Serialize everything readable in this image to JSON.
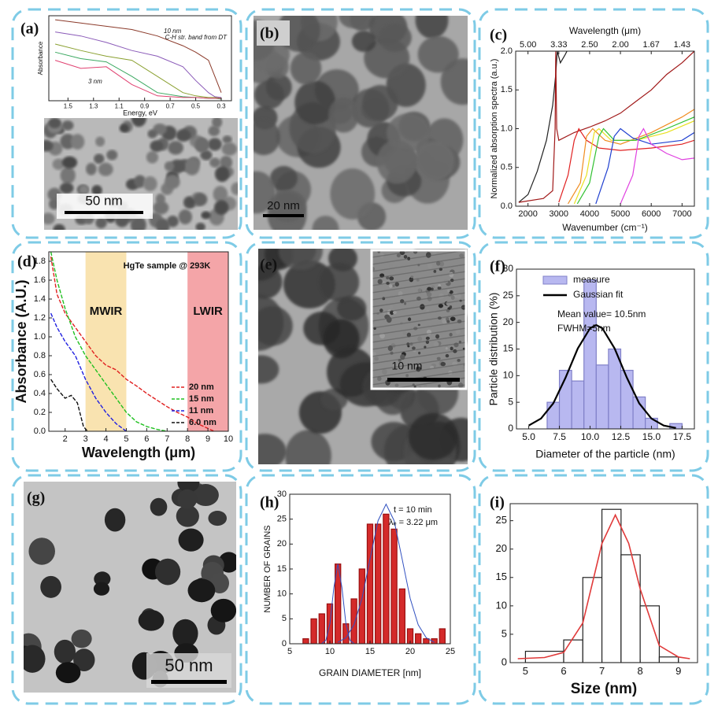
{
  "images": [
    {
      "label": "(a)",
      "scale_bar": "50 nm"
    },
    {
      "label": "(b)",
      "scale_bar": "20 nm"
    },
    {
      "label": "(e)",
      "scale_bar": "10 nm"
    },
    {
      "label": "(g)",
      "scale_bar": "50 nm"
    }
  ],
  "chart_data": [
    {
      "type": "line",
      "xlabel": "Energy, eV",
      "ylabel": "Absorbance",
      "xlim": [
        1.65,
        0.22
      ],
      "ylim": [
        0,
        1.05
      ],
      "xticks": [
        1.5,
        1.3,
        1.1,
        0.9,
        0.7,
        0.5,
        0.3
      ],
      "annotations": [
        "10 nm",
        "3 nm",
        "C-H str. band from DT"
      ],
      "series": [
        {
          "color": "#8b3a2a",
          "x": [
            1.6,
            1.4,
            1.2,
            1.0,
            0.8,
            0.6,
            0.5,
            0.4,
            0.35,
            0.3
          ],
          "values": [
            1.0,
            0.96,
            0.92,
            0.88,
            0.8,
            0.68,
            0.6,
            0.5,
            0.3,
            0.1
          ]
        },
        {
          "color": "#8a5ab8",
          "x": [
            1.6,
            1.4,
            1.2,
            1.0,
            0.8,
            0.6,
            0.5,
            0.4,
            0.35,
            0.3
          ],
          "values": [
            0.85,
            0.8,
            0.72,
            0.62,
            0.55,
            0.42,
            0.25,
            0.1,
            0.05,
            0.04
          ]
        },
        {
          "color": "#8aa030",
          "x": [
            1.6,
            1.4,
            1.2,
            1.0,
            0.8,
            0.6,
            0.5,
            0.4,
            0.35,
            0.3
          ],
          "values": [
            0.7,
            0.62,
            0.55,
            0.5,
            0.3,
            0.1,
            0.06,
            0.04,
            0.04,
            0.03
          ]
        },
        {
          "color": "#3aa860",
          "x": [
            1.6,
            1.4,
            1.2,
            1.0,
            0.8,
            0.6,
            0.5,
            0.4,
            0.35,
            0.3
          ],
          "values": [
            0.6,
            0.52,
            0.48,
            0.3,
            0.1,
            0.05,
            0.04,
            0.03,
            0.03,
            0.02
          ]
        },
        {
          "color": "#e04070",
          "x": [
            1.6,
            1.4,
            1.2,
            1.0,
            0.8,
            0.6,
            0.5,
            0.4,
            0.35,
            0.3
          ],
          "values": [
            0.5,
            0.4,
            0.42,
            0.2,
            0.06,
            0.04,
            0.04,
            0.03,
            0.03,
            0.03
          ]
        }
      ]
    },
    {
      "type": "line",
      "panel_label": "(c)",
      "x2label": "Wavelength (μm)",
      "xlabel": "Wavenumber (cm⁻¹)",
      "ylabel": "Normalized absorption spectra (a.u.)",
      "xlim": [
        1600,
        7400
      ],
      "ylim": [
        0,
        2.0
      ],
      "xticks": [
        2000,
        3000,
        4000,
        5000,
        6000,
        7000
      ],
      "x2ticks": [
        {
          "value": 2000,
          "label": "5.00"
        },
        {
          "value": 3000,
          "label": "3.33"
        },
        {
          "value": 4000,
          "label": "2.50"
        },
        {
          "value": 5000,
          "label": "2.00"
        },
        {
          "value": 6000,
          "label": "1.67"
        },
        {
          "value": 7000,
          "label": "1.43"
        }
      ],
      "yticks": [
        {
          "value": 0,
          "label": "0.0"
        },
        0.5,
        {
          "value": 1,
          "label": "1.0"
        },
        1.5,
        {
          "value": 2,
          "label": "2.0"
        }
      ],
      "series": [
        {
          "color": "#222222",
          "x": [
            1700,
            2000,
            2300,
            2600,
            2800,
            2900,
            2950,
            3050,
            3200,
            3400
          ],
          "values": [
            0.05,
            0.15,
            0.45,
            0.85,
            1.3,
            1.7,
            2.0,
            1.85,
            1.95,
            2.1
          ]
        },
        {
          "color": "#a01818",
          "x": [
            1700,
            2500,
            2800,
            2880,
            2900,
            2930,
            3000,
            3500,
            4000,
            4500,
            5000,
            5500,
            6000,
            6500,
            7000,
            7400
          ],
          "values": [
            0.05,
            0.1,
            0.2,
            1.0,
            2.0,
            1.0,
            0.85,
            0.95,
            1.02,
            1.1,
            1.2,
            1.35,
            1.5,
            1.7,
            1.85,
            2.0
          ]
        },
        {
          "color": "#e02020",
          "x": [
            3000,
            3300,
            3500,
            3650,
            3900,
            4300,
            5000,
            6000,
            7000,
            7400
          ],
          "values": [
            0.05,
            0.4,
            0.85,
            1.0,
            0.85,
            0.75,
            0.72,
            0.75,
            0.8,
            0.85
          ]
        },
        {
          "color": "#f08c20",
          "x": [
            3300,
            3700,
            3900,
            4100,
            4500,
            5000,
            6000,
            7000,
            7400
          ],
          "values": [
            0.03,
            0.3,
            0.9,
            1.0,
            0.85,
            0.8,
            0.95,
            1.15,
            1.25
          ]
        },
        {
          "color": "#e8e020",
          "x": [
            3500,
            3900,
            4150,
            4300,
            4700,
            5500,
            6500,
            7400
          ],
          "values": [
            0.03,
            0.4,
            0.95,
            1.0,
            0.85,
            0.85,
            0.95,
            1.1
          ]
        },
        {
          "color": "#30c030",
          "x": [
            3600,
            4000,
            4300,
            4450,
            4800,
            5500,
            6500,
            7400
          ],
          "values": [
            0.03,
            0.3,
            0.9,
            1.0,
            0.85,
            0.85,
            1.0,
            1.15
          ]
        },
        {
          "color": "#2040d0",
          "x": [
            4200,
            4600,
            4800,
            5000,
            5400,
            6000,
            7000,
            7400
          ],
          "values": [
            0.03,
            0.5,
            0.9,
            1.0,
            0.88,
            0.8,
            0.85,
            0.95
          ]
        },
        {
          "color": "#e040e0",
          "x": [
            5000,
            5400,
            5600,
            5750,
            6000,
            6500,
            7000,
            7400
          ],
          "values": [
            0.03,
            0.4,
            0.9,
            1.0,
            0.8,
            0.68,
            0.6,
            0.62
          ]
        }
      ]
    },
    {
      "type": "line",
      "panel_label": "(d)",
      "title": "HgTe sample @ 293K",
      "xlabel": "Wavelength (μm)",
      "ylabel": "Absorbance (A.U.)",
      "xlim": [
        1.2,
        10
      ],
      "ylim": [
        0,
        1.9
      ],
      "xticks": [
        2,
        3,
        4,
        5,
        6,
        7,
        8,
        9,
        10
      ],
      "yticks": [
        {
          "value": 0,
          "label": "0.0"
        },
        0.2,
        0.4,
        0.6,
        0.8,
        {
          "value": 1,
          "label": "1.0"
        },
        1.2,
        1.4,
        1.6,
        1.8
      ],
      "bands": [
        {
          "label": "MWIR",
          "from": 3,
          "to": 5,
          "color": "#f9e3b0"
        },
        {
          "label": "LWIR",
          "from": 8,
          "to": 10,
          "color": "#f4a5a8"
        }
      ],
      "series": [
        {
          "name": "20 nm",
          "color": "#e02020",
          "dash": true,
          "x": [
            1.3,
            1.6,
            2,
            2.5,
            3,
            3.5,
            4,
            4.5,
            5,
            5.5,
            6,
            6.5,
            7,
            7.5,
            8,
            8.5,
            9,
            9.3
          ],
          "values": [
            1.85,
            1.45,
            1.25,
            1.1,
            0.95,
            0.8,
            0.7,
            0.65,
            0.55,
            0.48,
            0.4,
            0.33,
            0.26,
            0.2,
            0.15,
            0.08,
            0.03,
            0.0
          ]
        },
        {
          "name": "15 nm",
          "color": "#20c020",
          "dash": true,
          "x": [
            1.3,
            1.6,
            2,
            2.5,
            3,
            3.5,
            4,
            4.5,
            5,
            5.5,
            6,
            6.5,
            7
          ],
          "values": [
            1.9,
            1.6,
            1.3,
            1.0,
            0.8,
            0.65,
            0.5,
            0.35,
            0.2,
            0.1,
            0.05,
            0.02,
            0.0
          ]
        },
        {
          "name": "11 nm",
          "color": "#2020e0",
          "dash": true,
          "x": [
            1.3,
            1.6,
            2,
            2.5,
            3,
            3.5,
            4,
            4.5,
            5
          ],
          "values": [
            1.25,
            1.1,
            0.95,
            0.8,
            0.55,
            0.35,
            0.2,
            0.08,
            0.0
          ]
        },
        {
          "name": "6.0 nm",
          "color": "#111111",
          "dash": true,
          "x": [
            1.3,
            1.6,
            2,
            2.3,
            2.6,
            2.9,
            3.1
          ],
          "values": [
            0.55,
            0.45,
            0.35,
            0.38,
            0.3,
            0.05,
            0.0
          ]
        }
      ]
    },
    {
      "type": "histogram",
      "panel_label": "(f)",
      "xlabel": "Diameter of the particle (nm)",
      "ylabel": "Particle distribution (%)",
      "xlim": [
        4,
        18.5
      ],
      "ylim": [
        0,
        30
      ],
      "xticks": [
        {
          "value": 5,
          "label": "5.0"
        },
        7.5,
        {
          "value": 10,
          "label": "10.0"
        },
        12.5,
        {
          "value": 15,
          "label": "15.0"
        },
        17.5
      ],
      "yticks": [
        0,
        5,
        10,
        15,
        20,
        25,
        30
      ],
      "annotations": [
        "Mean value= 10.5nm",
        "FWHM=5nm"
      ],
      "series": [
        {
          "name": "measure",
          "type": "histogram",
          "color": "#b8b8f0",
          "edge_color": "#8080c8",
          "bins": [
            6.5,
            7.5,
            8.5,
            9.5,
            10.5,
            11.5,
            12.5,
            13.5,
            14.5,
            15.5,
            16.5,
            17.5
          ],
          "values": [
            5,
            11,
            9,
            28,
            12,
            15,
            11,
            6,
            2,
            0,
            1
          ]
        },
        {
          "name": "Gaussian fit",
          "type": "line",
          "color": "#000000",
          "x": [
            5,
            6,
            7,
            8,
            9,
            10,
            10.5,
            11,
            12,
            13,
            14,
            15,
            16,
            17
          ],
          "values": [
            0.63,
            1.95,
            4.8,
            9.6,
            15.1,
            18.9,
            19.5,
            18.9,
            15.1,
            9.6,
            4.8,
            1.95,
            0.63,
            0.17
          ]
        }
      ]
    },
    {
      "type": "histogram",
      "panel_label": "(h)",
      "xlabel": "GRAIN DIAMETER  [nm]",
      "ylabel": "NUMBER OF GRAINS",
      "xlim": [
        5,
        25
      ],
      "ylim": [
        0,
        30
      ],
      "xticks": [
        5,
        10,
        15,
        20,
        25
      ],
      "yticks": [
        0,
        5,
        10,
        15,
        20,
        25,
        30
      ],
      "annotations": [
        "t = 10 min",
        "λₑ = 3.22 μm"
      ],
      "series": [
        {
          "type": "histogram",
          "color": "#d42a2a",
          "edge_color": "#9a1010",
          "bins": [
            6.5,
            7.5,
            8.5,
            9.5,
            10.5,
            11.5,
            12.5,
            13.5,
            14.5,
            15.5,
            16.5,
            17.5,
            18.5,
            19.5,
            20.5,
            21.5,
            22.5,
            23.5,
            24.5
          ],
          "values": [
            1,
            5,
            6,
            8,
            16,
            4,
            9,
            15,
            24,
            24,
            26,
            23,
            11,
            3,
            2,
            1,
            1,
            3
          ]
        },
        {
          "type": "line",
          "color": "#3050c0",
          "x": [
            9,
            9.5,
            10,
            10.5,
            11,
            11.5,
            12,
            12.5,
            13
          ],
          "values": [
            0.06,
            0.7,
            4,
            11.3,
            16,
            11.3,
            4,
            0.7,
            0.06
          ]
        },
        {
          "type": "line",
          "color": "#3050c0",
          "x": [
            11,
            12,
            13,
            14,
            15,
            16,
            17,
            18,
            19,
            20,
            21,
            22,
            23
          ],
          "values": [
            0.3,
            1.2,
            3.8,
            9.1,
            17,
            24.7,
            28,
            24.7,
            17,
            9.1,
            3.8,
            1.2,
            0.3
          ]
        }
      ]
    },
    {
      "type": "histogram",
      "panel_label": "(i)",
      "xlabel": "Size (nm)",
      "xlim": [
        4.6,
        9.5
      ],
      "ylim": [
        0,
        28
      ],
      "xticks": [
        5,
        6,
        7,
        8,
        9
      ],
      "yticks": [
        0,
        5,
        10,
        15,
        20,
        25
      ],
      "series": [
        {
          "type": "histogram",
          "color": "#ffffff",
          "edge_color": "#222222",
          "bins": [
            5,
            6,
            6.5,
            7,
            7.5,
            8,
            8.5,
            9
          ],
          "values": [
            2,
            4,
            15,
            27,
            19,
            10,
            1
          ]
        },
        {
          "type": "line",
          "color": "#e03a3a",
          "x": [
            4.8,
            5.5,
            6,
            6.5,
            7,
            7.35,
            7.7,
            8,
            8.5,
            9,
            9.3
          ],
          "values": [
            0.7,
            0.9,
            1.8,
            7,
            21,
            26,
            21,
            13,
            3,
            1,
            0.7
          ]
        }
      ]
    }
  ]
}
